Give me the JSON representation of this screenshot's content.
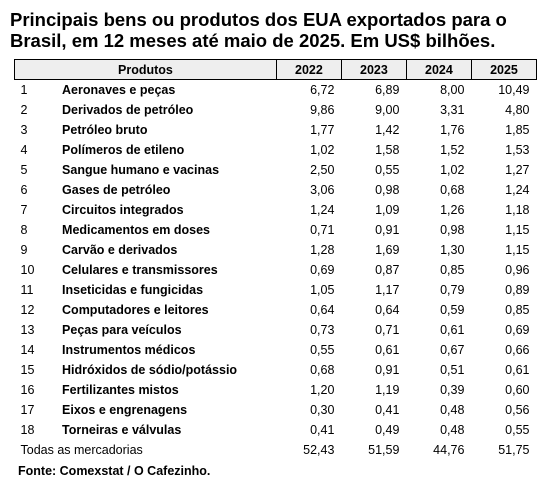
{
  "title": "Principais bens ou produtos dos EUA exportados para o Brasil, em 12 meses até maio de 2025. Em US$ bilhões.",
  "headers": {
    "products": "Produtos",
    "years": [
      "2022",
      "2023",
      "2024",
      "2025"
    ]
  },
  "rows": [
    {
      "idx": "1",
      "name": "Aeronaves e peças",
      "v": [
        "6,72",
        "6,89",
        "8,00",
        "10,49"
      ]
    },
    {
      "idx": "2",
      "name": "Derivados de petróleo",
      "v": [
        "9,86",
        "9,00",
        "3,31",
        "4,80"
      ]
    },
    {
      "idx": "3",
      "name": "Petróleo bruto",
      "v": [
        "1,77",
        "1,42",
        "1,76",
        "1,85"
      ]
    },
    {
      "idx": "4",
      "name": "Polímeros de etileno",
      "v": [
        "1,02",
        "1,58",
        "1,52",
        "1,53"
      ]
    },
    {
      "idx": "5",
      "name": "Sangue humano e vacinas",
      "v": [
        "2,50",
        "0,55",
        "1,02",
        "1,27"
      ]
    },
    {
      "idx": "6",
      "name": "Gases de petróleo",
      "v": [
        "3,06",
        "0,98",
        "0,68",
        "1,24"
      ]
    },
    {
      "idx": "7",
      "name": "Circuitos integrados",
      "v": [
        "1,24",
        "1,09",
        "1,26",
        "1,18"
      ]
    },
    {
      "idx": "8",
      "name": "Medicamentos em doses",
      "v": [
        "0,71",
        "0,91",
        "0,98",
        "1,15"
      ]
    },
    {
      "idx": "9",
      "name": "Carvão e derivados",
      "v": [
        "1,28",
        "1,69",
        "1,30",
        "1,15"
      ]
    },
    {
      "idx": "10",
      "name": "Celulares e transmissores",
      "v": [
        "0,69",
        "0,87",
        "0,85",
        "0,96"
      ]
    },
    {
      "idx": "11",
      "name": "Inseticidas e fungicidas",
      "v": [
        "1,05",
        "1,17",
        "0,79",
        "0,89"
      ]
    },
    {
      "idx": "12",
      "name": "Computadores e leitores",
      "v": [
        "0,64",
        "0,64",
        "0,59",
        "0,85"
      ]
    },
    {
      "idx": "13",
      "name": "Peças para veículos",
      "v": [
        "0,73",
        "0,71",
        "0,61",
        "0,69"
      ]
    },
    {
      "idx": "14",
      "name": "Instrumentos médicos",
      "v": [
        "0,55",
        "0,61",
        "0,67",
        "0,66"
      ]
    },
    {
      "idx": "15",
      "name": "Hidróxidos de sódio/potássio",
      "v": [
        "0,68",
        "0,91",
        "0,51",
        "0,61"
      ]
    },
    {
      "idx": "16",
      "name": "Fertilizantes mistos",
      "v": [
        "1,20",
        "1,19",
        "0,39",
        "0,60"
      ]
    },
    {
      "idx": "17",
      "name": "Eixos e engrenagens",
      "v": [
        "0,30",
        "0,41",
        "0,48",
        "0,56"
      ]
    },
    {
      "idx": "18",
      "name": "Torneiras e válvulas",
      "v": [
        "0,41",
        "0,49",
        "0,48",
        "0,55"
      ]
    }
  ],
  "total": {
    "label": "Todas as mercadorias",
    "v": [
      "52,43",
      "51,59",
      "44,76",
      "51,75"
    ]
  },
  "source": "Fonte: Comexstat / O Cafezinho."
}
